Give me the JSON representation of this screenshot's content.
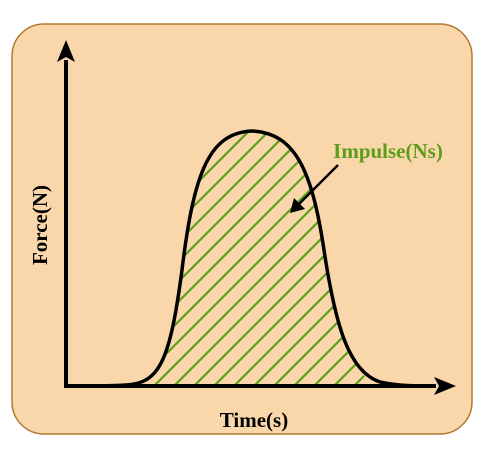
{
  "diagram": {
    "x_axis_label": "Time(s)",
    "y_axis_label": "Force(N)",
    "area_label": "Impulse(Ns)"
  },
  "colors": {
    "background": "#fad7aa",
    "border": "#b37a2f",
    "curve": "#000000",
    "hatch": "#5a9e1a",
    "area_label": "#5a9e1a",
    "text": "#000000"
  }
}
